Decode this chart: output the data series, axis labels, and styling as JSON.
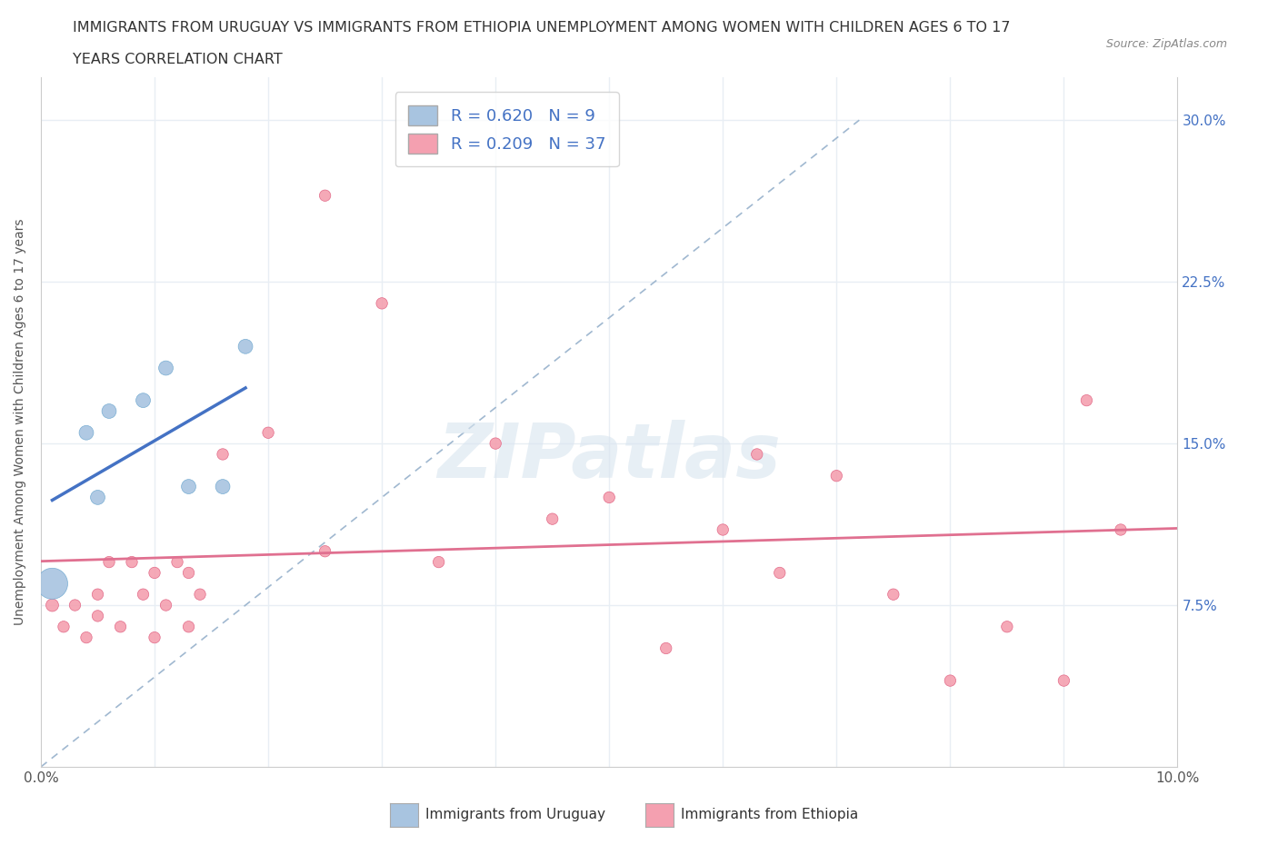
{
  "title_line1": "IMMIGRANTS FROM URUGUAY VS IMMIGRANTS FROM ETHIOPIA UNEMPLOYMENT AMONG WOMEN WITH CHILDREN AGES 6 TO 17",
  "title_line2": "YEARS CORRELATION CHART",
  "source": "Source: ZipAtlas.com",
  "ylabel": "Unemployment Among Women with Children Ages 6 to 17 years",
  "xlim": [
    0.0,
    0.1
  ],
  "ylim": [
    0.0,
    0.32
  ],
  "uruguay_color": "#a8c4e0",
  "uruguay_edge_color": "#6fa8d0",
  "ethiopia_color": "#f4a0b0",
  "ethiopia_edge_color": "#e06080",
  "uruguay_line_color": "#4472c4",
  "ethiopia_line_color": "#e07090",
  "dashed_line_color": "#a0b8d0",
  "R_uruguay": 0.62,
  "N_uruguay": 9,
  "R_ethiopia": 0.209,
  "N_ethiopia": 37,
  "uruguay_x": [
    0.001,
    0.004,
    0.005,
    0.006,
    0.009,
    0.011,
    0.013,
    0.016,
    0.018
  ],
  "uruguay_y": [
    0.085,
    0.155,
    0.125,
    0.165,
    0.17,
    0.185,
    0.13,
    0.13,
    0.195
  ],
  "uruguay_sizes": [
    600,
    130,
    130,
    130,
    130,
    130,
    130,
    130,
    130
  ],
  "ethiopia_x": [
    0.001,
    0.002,
    0.003,
    0.004,
    0.005,
    0.005,
    0.006,
    0.007,
    0.008,
    0.009,
    0.01,
    0.01,
    0.011,
    0.012,
    0.013,
    0.013,
    0.014,
    0.016,
    0.02,
    0.025,
    0.025,
    0.03,
    0.035,
    0.04,
    0.045,
    0.05,
    0.055,
    0.06,
    0.063,
    0.065,
    0.07,
    0.075,
    0.08,
    0.085,
    0.09,
    0.092,
    0.095
  ],
  "ethiopia_y": [
    0.075,
    0.065,
    0.075,
    0.06,
    0.08,
    0.07,
    0.095,
    0.065,
    0.095,
    0.08,
    0.09,
    0.06,
    0.075,
    0.095,
    0.065,
    0.09,
    0.08,
    0.145,
    0.155,
    0.1,
    0.265,
    0.215,
    0.095,
    0.15,
    0.115,
    0.125,
    0.055,
    0.11,
    0.145,
    0.09,
    0.135,
    0.08,
    0.04,
    0.065,
    0.04,
    0.17,
    0.11
  ],
  "ethiopia_sizes": [
    100,
    80,
    80,
    80,
    80,
    80,
    80,
    80,
    80,
    80,
    80,
    80,
    80,
    80,
    80,
    80,
    80,
    80,
    80,
    80,
    80,
    80,
    80,
    80,
    80,
    80,
    80,
    80,
    80,
    80,
    80,
    80,
    80,
    80,
    80,
    80,
    80
  ],
  "watermark": "ZIPatlas",
  "legend_label_uruguay": "Immigrants from Uruguay",
  "legend_label_ethiopia": "Immigrants from Ethiopia",
  "background_color": "#ffffff",
  "grid_color": "#e8eef4"
}
